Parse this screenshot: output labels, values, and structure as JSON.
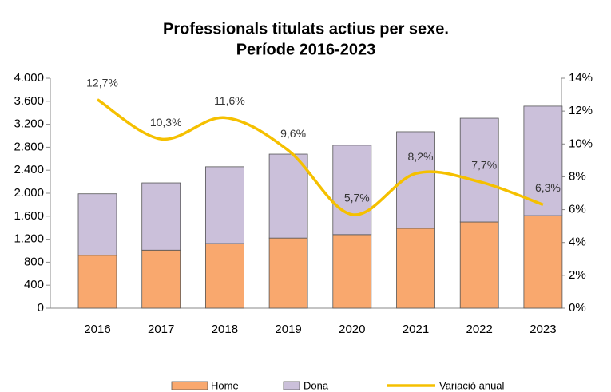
{
  "chart_data": {
    "type": "bar",
    "title": [
      "Professionals titulats actius per sexe.",
      "Període 2016-2023"
    ],
    "categories": [
      "2016",
      "2017",
      "2018",
      "2019",
      "2020",
      "2021",
      "2022",
      "2023"
    ],
    "series": [
      {
        "name": "Home",
        "color": "#f9a86e",
        "values": [
          920,
          1010,
          1125,
          1220,
          1280,
          1390,
          1500,
          1610
        ]
      },
      {
        "name": "Dona",
        "color": "#cbc0da",
        "values": [
          1070,
          1170,
          1335,
          1460,
          1555,
          1680,
          1805,
          1905
        ]
      },
      {
        "name": "Variació anual",
        "color": "#f5c000",
        "type": "line",
        "axis": "y2",
        "values": [
          12.7,
          10.3,
          11.6,
          9.6,
          5.7,
          8.2,
          7.7,
          6.3
        ],
        "value_labels": [
          "12,7%",
          "10,3%",
          "11,6%",
          "9,6%",
          "5,7%",
          "8,2%",
          "7,7%",
          "6,3%"
        ]
      }
    ],
    "stacked": true,
    "ylim": [
      0,
      4000
    ],
    "yticks": [
      0,
      400,
      800,
      {
        "value": 1200,
        "label": "1.200"
      },
      {
        "value": 1600,
        "label": "1.600"
      },
      {
        "value": 2000,
        "label": "2.000"
      },
      {
        "value": 2400,
        "label": "2.400"
      },
      {
        "value": 2800,
        "label": "2.800"
      },
      {
        "value": 3200,
        "label": "3.200"
      },
      {
        "value": 3600,
        "label": "3.600"
      },
      {
        "value": 4000,
        "label": "4.000"
      }
    ],
    "y2lim": [
      0,
      14
    ],
    "y2ticks": [
      {
        "value": 0,
        "label": "0%"
      },
      {
        "value": 2,
        "label": "2%"
      },
      {
        "value": 4,
        "label": "4%"
      },
      {
        "value": 6,
        "label": "6%"
      },
      {
        "value": 8,
        "label": "8%"
      },
      {
        "value": 10,
        "label": "10%"
      },
      {
        "value": 12,
        "label": "12%"
      },
      {
        "value": 14,
        "label": "14%"
      }
    ],
    "legend": "bottom"
  }
}
